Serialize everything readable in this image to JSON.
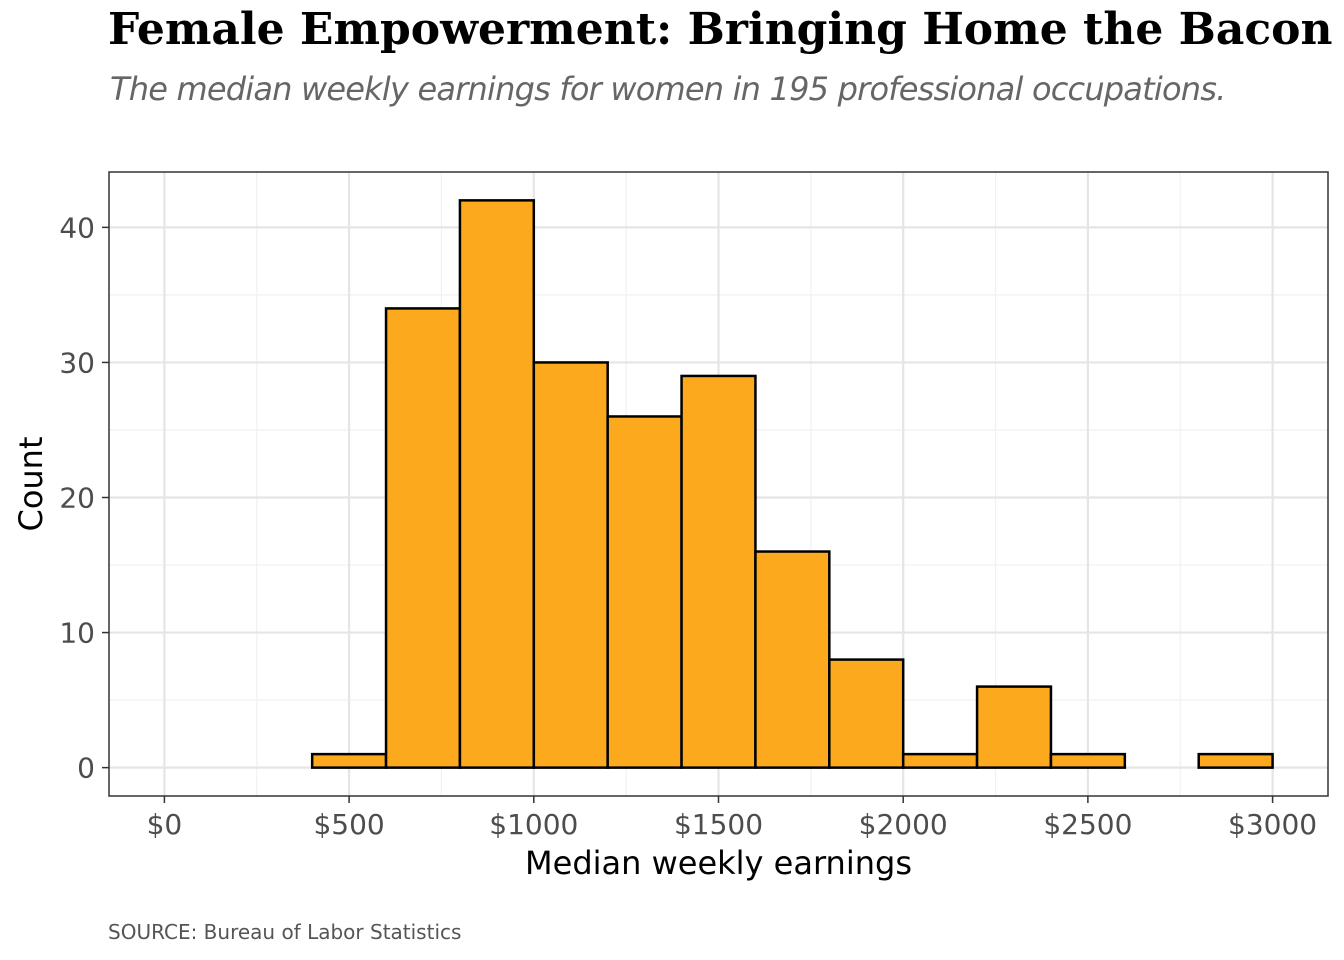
{
  "title": "Female Empowerment: Bringing Home the Bacon",
  "subtitle": "The median weekly earnings for women in 195 professional occupations.",
  "caption": "SOURCE: Bureau of Labor Statistics",
  "colors": {
    "bar_fill": "#FCA91E",
    "bar_stroke": "#000000",
    "grid_major": "#E5E5E5",
    "grid_minor": "#F1F1F1",
    "panel_border": "#333333"
  },
  "chart_data": {
    "type": "bar",
    "xlabel": "Median weekly earnings",
    "ylabel": "Count",
    "xlim": [
      -150,
      3150
    ],
    "ylim": [
      -2.1,
      44.1
    ],
    "grid": true,
    "x_ticks": [
      {
        "value": 0,
        "label": "$0"
      },
      {
        "value": 500,
        "label": "$500"
      },
      {
        "value": 1000,
        "label": "$1000"
      },
      {
        "value": 1500,
        "label": "$1500"
      },
      {
        "value": 2000,
        "label": "$2000"
      },
      {
        "value": 2500,
        "label": "$2500"
      },
      {
        "value": 3000,
        "label": "$3000"
      }
    ],
    "y_ticks": [
      {
        "value": 0,
        "label": "0"
      },
      {
        "value": 10,
        "label": "10"
      },
      {
        "value": 20,
        "label": "20"
      },
      {
        "value": 30,
        "label": "30"
      },
      {
        "value": 40,
        "label": "40"
      }
    ],
    "bins": [
      {
        "x0": 0,
        "x1": 200,
        "count": 0
      },
      {
        "x0": 200,
        "x1": 400,
        "count": 0
      },
      {
        "x0": 400,
        "x1": 600,
        "count": 1
      },
      {
        "x0": 600,
        "x1": 800,
        "count": 34
      },
      {
        "x0": 800,
        "x1": 1000,
        "count": 42
      },
      {
        "x0": 1000,
        "x1": 1200,
        "count": 30
      },
      {
        "x0": 1200,
        "x1": 1400,
        "count": 26
      },
      {
        "x0": 1400,
        "x1": 1600,
        "count": 29
      },
      {
        "x0": 1600,
        "x1": 1800,
        "count": 16
      },
      {
        "x0": 1800,
        "x1": 2000,
        "count": 8
      },
      {
        "x0": 2000,
        "x1": 2200,
        "count": 1
      },
      {
        "x0": 2200,
        "x1": 2400,
        "count": 6
      },
      {
        "x0": 2400,
        "x1": 2600,
        "count": 1
      },
      {
        "x0": 2600,
        "x1": 2800,
        "count": 0
      },
      {
        "x0": 2800,
        "x1": 3000,
        "count": 1
      }
    ]
  }
}
